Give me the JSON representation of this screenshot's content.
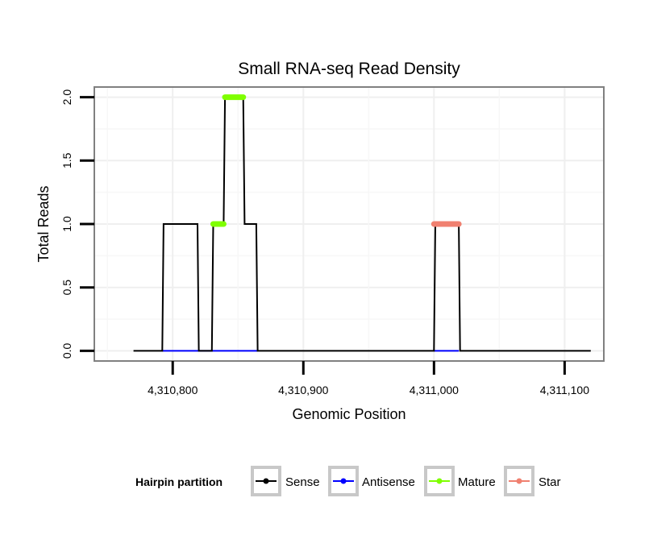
{
  "chart_data": {
    "type": "line",
    "title": "Small RNA-seq Read Density",
    "xlabel": "Genomic Position",
    "ylabel": "Total Reads",
    "xlim": [
      4310740,
      4311130
    ],
    "ylim": [
      -0.08,
      2.08
    ],
    "x_ticks": [
      4310800,
      4310900,
      4311000,
      4311100
    ],
    "x_tick_labels": [
      "4,310,800",
      "4,310,900",
      "4,311,000",
      "4,311,100"
    ],
    "y_ticks": [
      0.0,
      0.5,
      1.0,
      1.5,
      2.0
    ],
    "y_tick_labels": [
      "0.0",
      "0.5",
      "1.0",
      "1.5",
      "2.0"
    ],
    "grid": true,
    "legend": {
      "title": "Hairpin partition",
      "position": "bottom",
      "entries": [
        {
          "name": "Sense",
          "color": "#000000"
        },
        {
          "name": "Antisense",
          "color": "#0000ff"
        },
        {
          "name": "Mature",
          "color": "#7fff00"
        },
        {
          "name": "Star",
          "color": "#f08070"
        }
      ]
    },
    "series": [
      {
        "name": "Sense",
        "color": "#000000",
        "style": "line",
        "x": [
          4310770,
          4310792,
          4310793,
          4310819,
          4310820,
          4310830,
          4310831,
          4310839,
          4310840,
          4310854,
          4310855,
          4310864,
          4310865,
          4311000,
          4311001,
          4311019,
          4311020,
          4311120
        ],
        "y": [
          0,
          0,
          1,
          1,
          0,
          0,
          1,
          1,
          2,
          2,
          1,
          1,
          0,
          0,
          1,
          1,
          0,
          0
        ]
      },
      {
        "name": "Antisense",
        "color": "#0000ff",
        "style": "line",
        "x": [
          4310792,
          4310865,
          4311000,
          4311019
        ],
        "y": [
          0,
          0,
          0,
          0
        ],
        "breaks_after": [
          1
        ]
      },
      {
        "name": "Mature",
        "color": "#7fff00",
        "style": "segment",
        "segments": [
          {
            "x_start": 4310831,
            "x_end": 4310839,
            "y": 1
          },
          {
            "x_start": 4310840,
            "x_end": 4310854,
            "y": 2
          }
        ]
      },
      {
        "name": "Star",
        "color": "#f08070",
        "style": "segment",
        "segments": [
          {
            "x_start": 4311000,
            "x_end": 4311019,
            "y": 1
          }
        ]
      }
    ]
  }
}
